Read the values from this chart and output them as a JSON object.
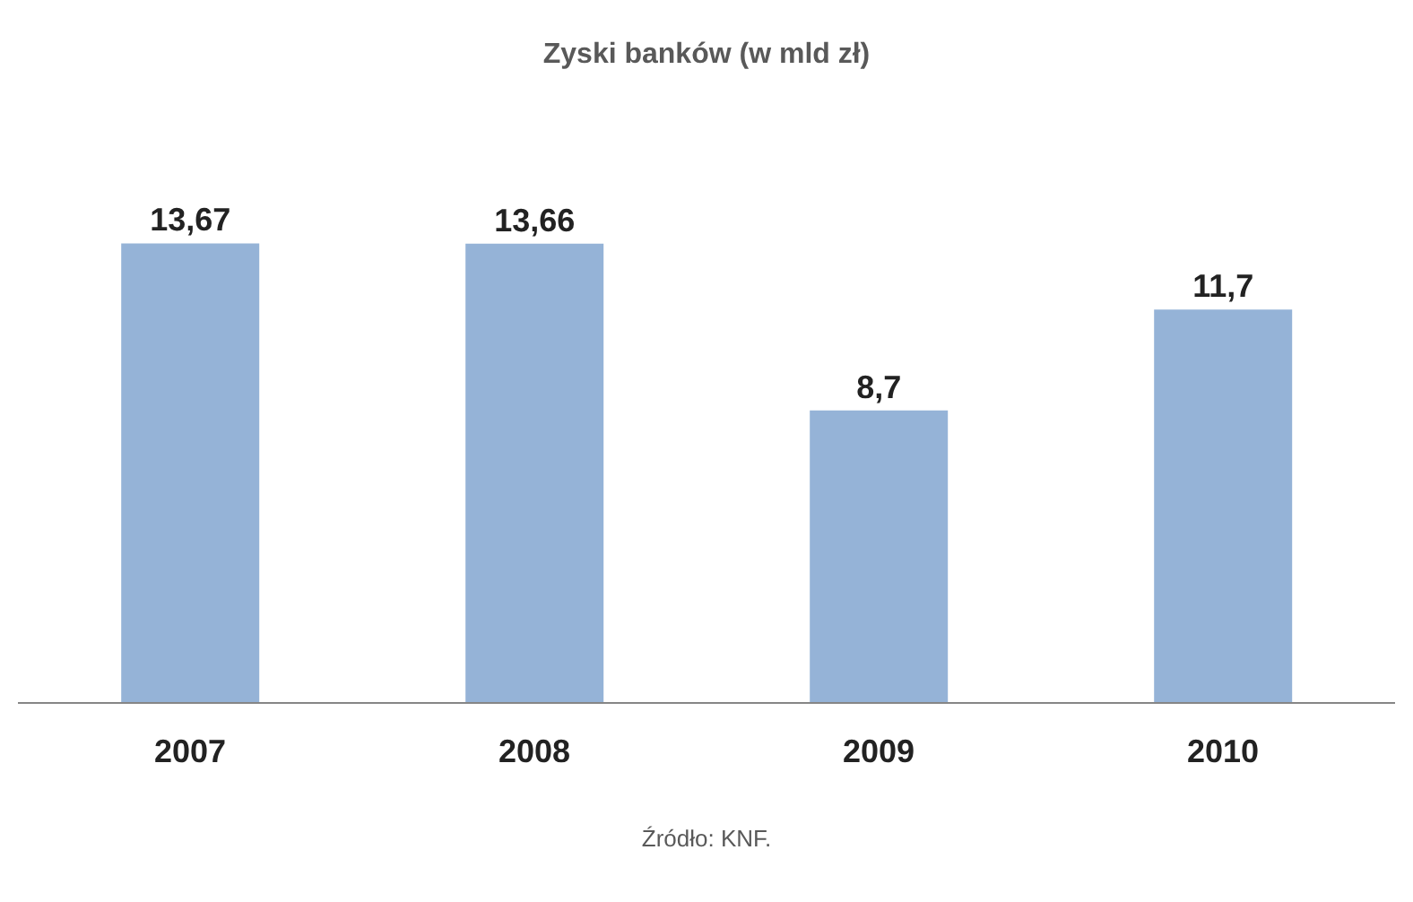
{
  "chart_data": {
    "type": "bar",
    "title": "Zyski banków (w mld zł)",
    "categories": [
      "2007",
      "2008",
      "2009",
      "2010"
    ],
    "values": [
      13.67,
      13.66,
      8.7,
      11.7
    ],
    "value_labels": [
      "13,67",
      "13,66",
      "8,7",
      "11,7"
    ],
    "color": "#95b3d7",
    "grid": false,
    "legend": false,
    "annotations": [
      "Źródło: KNF."
    ]
  }
}
